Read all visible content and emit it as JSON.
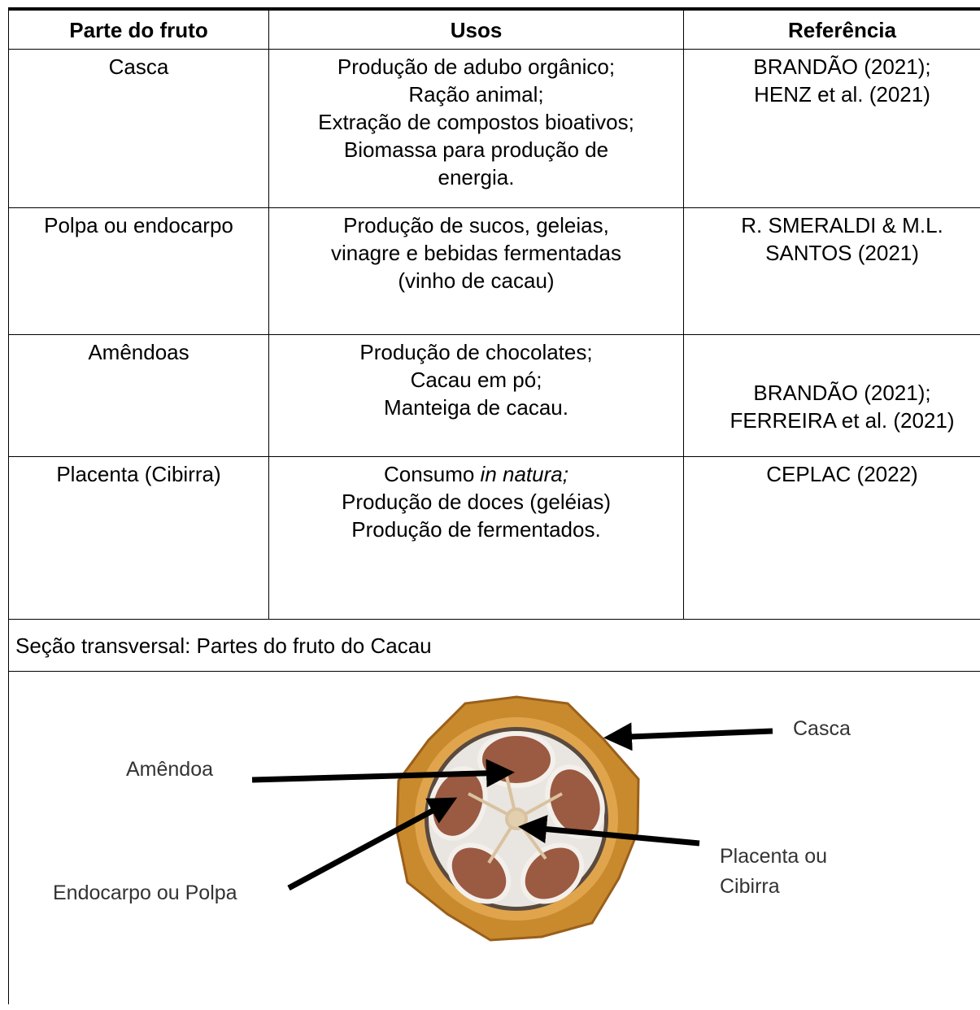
{
  "table": {
    "header": [
      "Parte do fruto",
      "Usos",
      "Referência"
    ],
    "rows": [
      {
        "part": "Casca",
        "uses": [
          "Produção de adubo orgânico;",
          "Ração animal;",
          "Extração de compostos bioativos;",
          "Biomassa para produção de",
          "energia."
        ],
        "references": [
          "BRANDÃO (2021);",
          "HENZ et al. (2021)"
        ]
      },
      {
        "part": "Polpa ou endocarpo",
        "uses": [
          "Produção de sucos, geleias,",
          "vinagre e bebidas fermentadas",
          "(vinho de cacau)"
        ],
        "references": [
          "R. SMERALDI & M.L.",
          "SANTOS (2021)"
        ]
      },
      {
        "part": "Amêndoas",
        "uses": [
          "Produção de chocolates;",
          "Cacau em pó;",
          "Manteiga de cacau."
        ],
        "references": [
          "BRANDÃO (2021);",
          "FERREIRA et al. (2021)"
        ]
      },
      {
        "part": "Placenta (Cibirra)",
        "uses": [
          [
            "Consumo",
            "in natura;"
          ],
          "Produção de doces (geléias)",
          "Produção de fermentados."
        ],
        "references": [
          "CEPLAC (2022)"
        ]
      }
    ],
    "caption": "Seção transversal: Partes do fruto do Cacau"
  },
  "figure": {
    "labels": {
      "casca": "Casca",
      "amendoa": "Amêndoa",
      "endocarpo": "Endocarpo ou Polpa",
      "placenta": [
        "Placenta ou",
        "Cibirra"
      ]
    }
  }
}
